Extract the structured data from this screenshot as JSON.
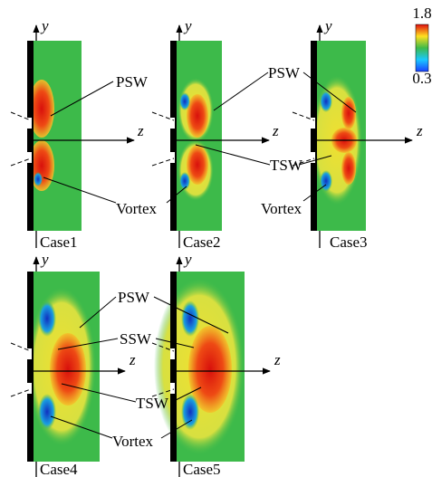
{
  "colorbar": {
    "max": 1.8,
    "min": 0.3
  },
  "panels": [
    {
      "label": "Case1",
      "y_axis": "y",
      "z_axis": "z"
    },
    {
      "label": "Case2",
      "y_axis": "y",
      "z_axis": "z"
    },
    {
      "label": "Case3",
      "y_axis": "y",
      "z_axis": "z"
    },
    {
      "label": "Case4",
      "y_axis": "y",
      "z_axis": "z"
    },
    {
      "label": "Case5",
      "y_axis": "y",
      "z_axis": "z"
    }
  ],
  "annotations": [
    "PSW",
    "Vortex",
    "PSW",
    "TSW",
    "Vortex",
    "PSW",
    "SSW",
    "TSW",
    "Vortex"
  ]
}
